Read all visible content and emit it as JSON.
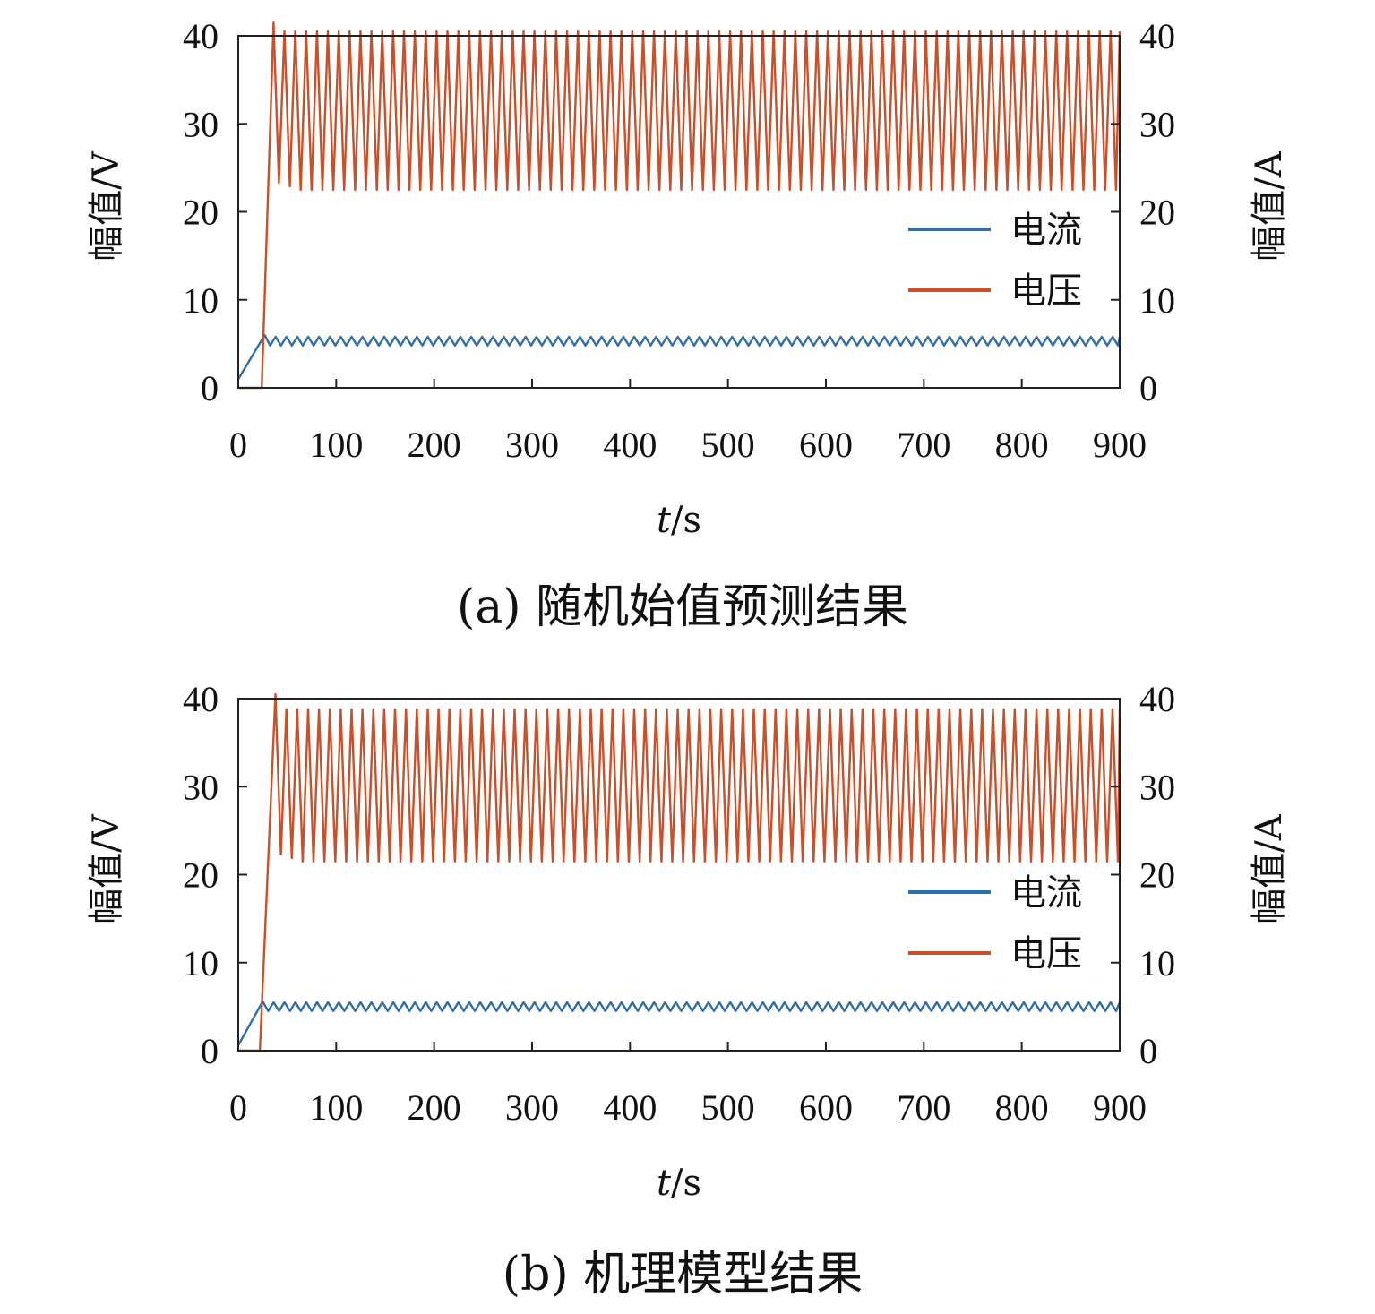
{
  "chart_data": [
    {
      "type": "line",
      "caption": "(a) 随机始值预测结果",
      "xlabel_var": "t",
      "xlabel_unit": "/s",
      "ylabel_left": "幅值/V",
      "ylabel_right": "幅值/A",
      "xlim": [
        0,
        900
      ],
      "ylim": [
        0,
        40
      ],
      "x_ticks": [
        "0",
        "100",
        "200",
        "300",
        "400",
        "500",
        "600",
        "700",
        "800",
        "900"
      ],
      "y_ticks": [
        "0",
        "10",
        "20",
        "30",
        "40"
      ],
      "legend": {
        "position": "center-right",
        "items": [
          "电流",
          "电压"
        ]
      },
      "colors": {
        "current": "#2f6ea6",
        "voltage": "#c8502a"
      },
      "series": [
        {
          "name": "电流",
          "color": "#2f6ea6",
          "rise_start": [
            0,
            1
          ],
          "rise_end_x": 27,
          "peak": 6.0,
          "steady_min": 4.8,
          "steady_max": 5.8,
          "period": 11.1
        },
        {
          "name": "电压",
          "color": "#c8502a",
          "delay_x": 24,
          "first_peak_x": 36,
          "first_peak": 41.5,
          "steady_min": 22.5,
          "steady_max": 40.5,
          "period": 11.1
        }
      ]
    },
    {
      "type": "line",
      "caption": "(b) 机理模型结果",
      "xlabel_var": "t",
      "xlabel_unit": "/s",
      "ylabel_left": "幅值/V",
      "ylabel_right": "幅值/A",
      "xlim": [
        0,
        900
      ],
      "ylim": [
        0,
        40
      ],
      "x_ticks": [
        "0",
        "100",
        "200",
        "300",
        "400",
        "500",
        "600",
        "700",
        "800",
        "900"
      ],
      "y_ticks": [
        "0",
        "10",
        "20",
        "30",
        "40"
      ],
      "legend": {
        "position": "center-right",
        "items": [
          "电流",
          "电压"
        ]
      },
      "colors": {
        "current": "#2f6ea6",
        "voltage": "#c8502a"
      },
      "series": [
        {
          "name": "电流",
          "color": "#2f6ea6",
          "rise_start": [
            0,
            0.6
          ],
          "rise_end_x": 25,
          "peak": 5.6,
          "steady_min": 4.5,
          "steady_max": 5.5,
          "period": 11.1
        },
        {
          "name": "电压",
          "color": "#c8502a",
          "delay_x": 22,
          "first_peak_x": 38,
          "first_peak": 40.5,
          "steady_min": 21.5,
          "steady_max": 38.8,
          "period": 11.1
        }
      ]
    }
  ]
}
